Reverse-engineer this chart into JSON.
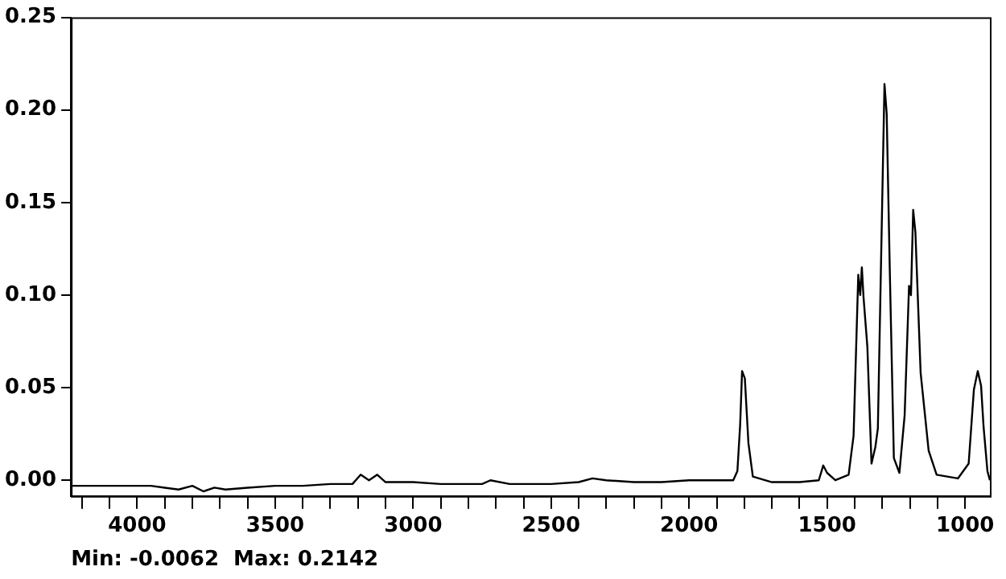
{
  "chart_data": {
    "type": "line",
    "annotations": [
      "Min: -0.0062  Max: 0.2142"
    ],
    "x": [
      4240,
      4100,
      3950,
      3900,
      3850,
      3800,
      3760,
      3720,
      3680,
      3600,
      3500,
      3400,
      3300,
      3220,
      3190,
      3160,
      3130,
      3100,
      3000,
      2900,
      2750,
      2720,
      2650,
      2500,
      2400,
      2350,
      2300,
      2200,
      2100,
      2000,
      1972,
      1840,
      1825,
      1815,
      1808,
      1798,
      1785,
      1769,
      1700,
      1600,
      1530,
      1514,
      1500,
      1470,
      1422,
      1404,
      1387,
      1380,
      1374,
      1368,
      1354,
      1339,
      1325,
      1316,
      1306,
      1292,
      1284,
      1273,
      1258,
      1238,
      1219,
      1203,
      1196,
      1188,
      1180,
      1161,
      1132,
      1103,
      1026,
      987,
      968,
      954,
      942,
      933,
      919,
      910
    ],
    "series": [
      {
        "color": "#000000",
        "values": [
          -0.003,
          -0.003,
          -0.003,
          -0.004,
          -0.005,
          -0.003,
          -0.006,
          -0.004,
          -0.005,
          -0.004,
          -0.003,
          -0.003,
          -0.002,
          -0.002,
          0.003,
          0.0,
          0.003,
          -0.001,
          -0.001,
          -0.002,
          -0.002,
          0.0,
          -0.002,
          -0.002,
          -0.001,
          0.001,
          0.0,
          -0.001,
          -0.001,
          0.0,
          0.0,
          0.0,
          0.005,
          0.03,
          0.059,
          0.055,
          0.02,
          0.002,
          -0.001,
          -0.001,
          0.0,
          0.008,
          0.004,
          0.0,
          0.003,
          0.024,
          0.111,
          0.1,
          0.115,
          0.099,
          0.072,
          0.009,
          0.018,
          0.028,
          0.106,
          0.214,
          0.198,
          0.115,
          0.012,
          0.004,
          0.035,
          0.105,
          0.1,
          0.146,
          0.134,
          0.058,
          0.016,
          0.003,
          0.001,
          0.009,
          0.049,
          0.059,
          0.051,
          0.029,
          0.005,
          0.0
        ]
      }
    ],
    "xlim": [
      4240,
      910
    ],
    "ylim": [
      -0.0085,
      0.25
    ],
    "xticks": [
      {
        "value": 4200,
        "label": null
      },
      {
        "value": 4100,
        "label": null
      },
      4000,
      {
        "value": 3900,
        "label": null
      },
      {
        "value": 3800,
        "label": null
      },
      {
        "value": 3700,
        "label": null
      },
      {
        "value": 3600,
        "label": null
      },
      3500,
      {
        "value": 3400,
        "label": null
      },
      {
        "value": 3300,
        "label": null
      },
      {
        "value": 3200,
        "label": null
      },
      {
        "value": 3100,
        "label": null
      },
      3000,
      {
        "value": 2900,
        "label": null
      },
      {
        "value": 2800,
        "label": null
      },
      {
        "value": 2700,
        "label": null
      },
      {
        "value": 2600,
        "label": null
      },
      2500,
      {
        "value": 2400,
        "label": null
      },
      {
        "value": 2300,
        "label": null
      },
      {
        "value": 2200,
        "label": null
      },
      {
        "value": 2100,
        "label": null
      },
      2000,
      {
        "value": 1900,
        "label": null
      },
      {
        "value": 1800,
        "label": null
      },
      {
        "value": 1700,
        "label": null
      },
      {
        "value": 1600,
        "label": null
      },
      1500,
      {
        "value": 1400,
        "label": null
      },
      {
        "value": 1300,
        "label": null
      },
      {
        "value": 1200,
        "label": null
      },
      {
        "value": 1100,
        "label": null
      },
      1000
    ],
    "yticks": [
      {
        "value": 0,
        "label": "0.00"
      },
      {
        "value": 0.05,
        "label": "0.05"
      },
      {
        "value": 0.1,
        "label": "0.10"
      },
      {
        "value": 0.15,
        "label": "0.15"
      },
      {
        "value": 0.2,
        "label": "0.20"
      },
      {
        "value": 0.25,
        "label": "0.25"
      }
    ],
    "grid": false,
    "legend": false,
    "marker": "none",
    "line_style": "solid"
  }
}
